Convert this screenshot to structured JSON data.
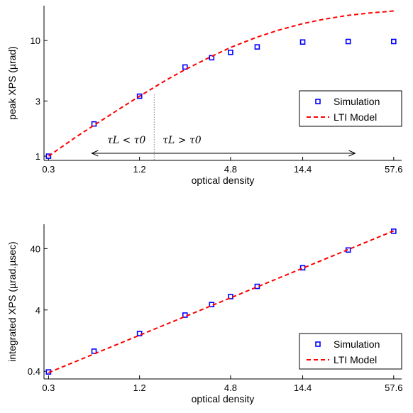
{
  "chart_data": [
    {
      "type": "scatter",
      "xlabel": "optical density",
      "ylabel": "peak XPS (µrad)",
      "xscale": "log",
      "yscale": "log",
      "xlim": [
        0.28,
        65
      ],
      "ylim": [
        0.92,
        20
      ],
      "xticks": [
        0.3,
        1.2,
        4.8,
        14.4,
        57.6
      ],
      "xtick_labels": [
        "0.3",
        "1.2",
        "4.8",
        "14.4",
        "57.6"
      ],
      "yticks": [
        1,
        3,
        10
      ],
      "ytick_labels": [
        "1",
        "3",
        "10"
      ],
      "series": [
        {
          "name": "Simulation",
          "style": "square-markers",
          "color": "#0000ff",
          "x": [
            0.3,
            0.6,
            1.2,
            2.4,
            3.6,
            4.8,
            7.2,
            14.4,
            28.8,
            57.6
          ],
          "y": [
            1.0,
            1.9,
            3.3,
            5.9,
            7.1,
            7.9,
            8.8,
            9.7,
            9.8,
            9.8
          ]
        },
        {
          "name": "LTI Model",
          "style": "dashed-line",
          "color": "#ff0000",
          "x": [
            0.3,
            0.45,
            0.6,
            0.9,
            1.2,
            1.8,
            2.4,
            3.6,
            4.8,
            7.2,
            10,
            14.4,
            20,
            28.8,
            40,
            57.6
          ],
          "y": [
            1.0,
            1.45,
            1.85,
            2.6,
            3.3,
            4.55,
            5.6,
            7.3,
            8.7,
            10.7,
            12.3,
            14.0,
            15.3,
            16.5,
            17.3,
            18.0
          ]
        }
      ],
      "legend_position": "right",
      "divider_x": 1.5,
      "annotations": [
        {
          "text": "τL < τ0",
          "arrow": "left",
          "x_from": 1.5,
          "x_to": 0.58
        },
        {
          "text": "τL > τ0",
          "arrow": "right",
          "x_from": 1.5,
          "x_to": 32
        }
      ]
    },
    {
      "type": "scatter",
      "xlabel": "optical density",
      "ylabel": "integrated XPS (µrad.µsec)",
      "xscale": "log",
      "yscale": "log",
      "xlim": [
        0.28,
        65
      ],
      "ylim": [
        0.3,
        100
      ],
      "xticks": [
        0.3,
        1.2,
        4.8,
        14.4,
        57.6
      ],
      "xtick_labels": [
        "0.3",
        "1.2",
        "4.8",
        "14.4",
        "57.6"
      ],
      "yticks": [
        0.4,
        4,
        40
      ],
      "ytick_labels": [
        "0.4",
        "4",
        "40"
      ],
      "series": [
        {
          "name": "Simulation",
          "style": "square-markers",
          "color": "#0000ff",
          "x": [
            0.3,
            0.6,
            1.2,
            2.4,
            3.6,
            4.8,
            7.2,
            14.4,
            28.8,
            57.6
          ],
          "y": [
            0.39,
            0.85,
            1.65,
            3.3,
            4.9,
            6.6,
            9.7,
            19.5,
            38,
            77
          ]
        },
        {
          "name": "LTI Model",
          "style": "dashed-line",
          "color": "#ff0000",
          "x": [
            0.3,
            57.6
          ],
          "y": [
            0.38,
            78
          ]
        }
      ],
      "legend_position": "bottom-right"
    }
  ]
}
